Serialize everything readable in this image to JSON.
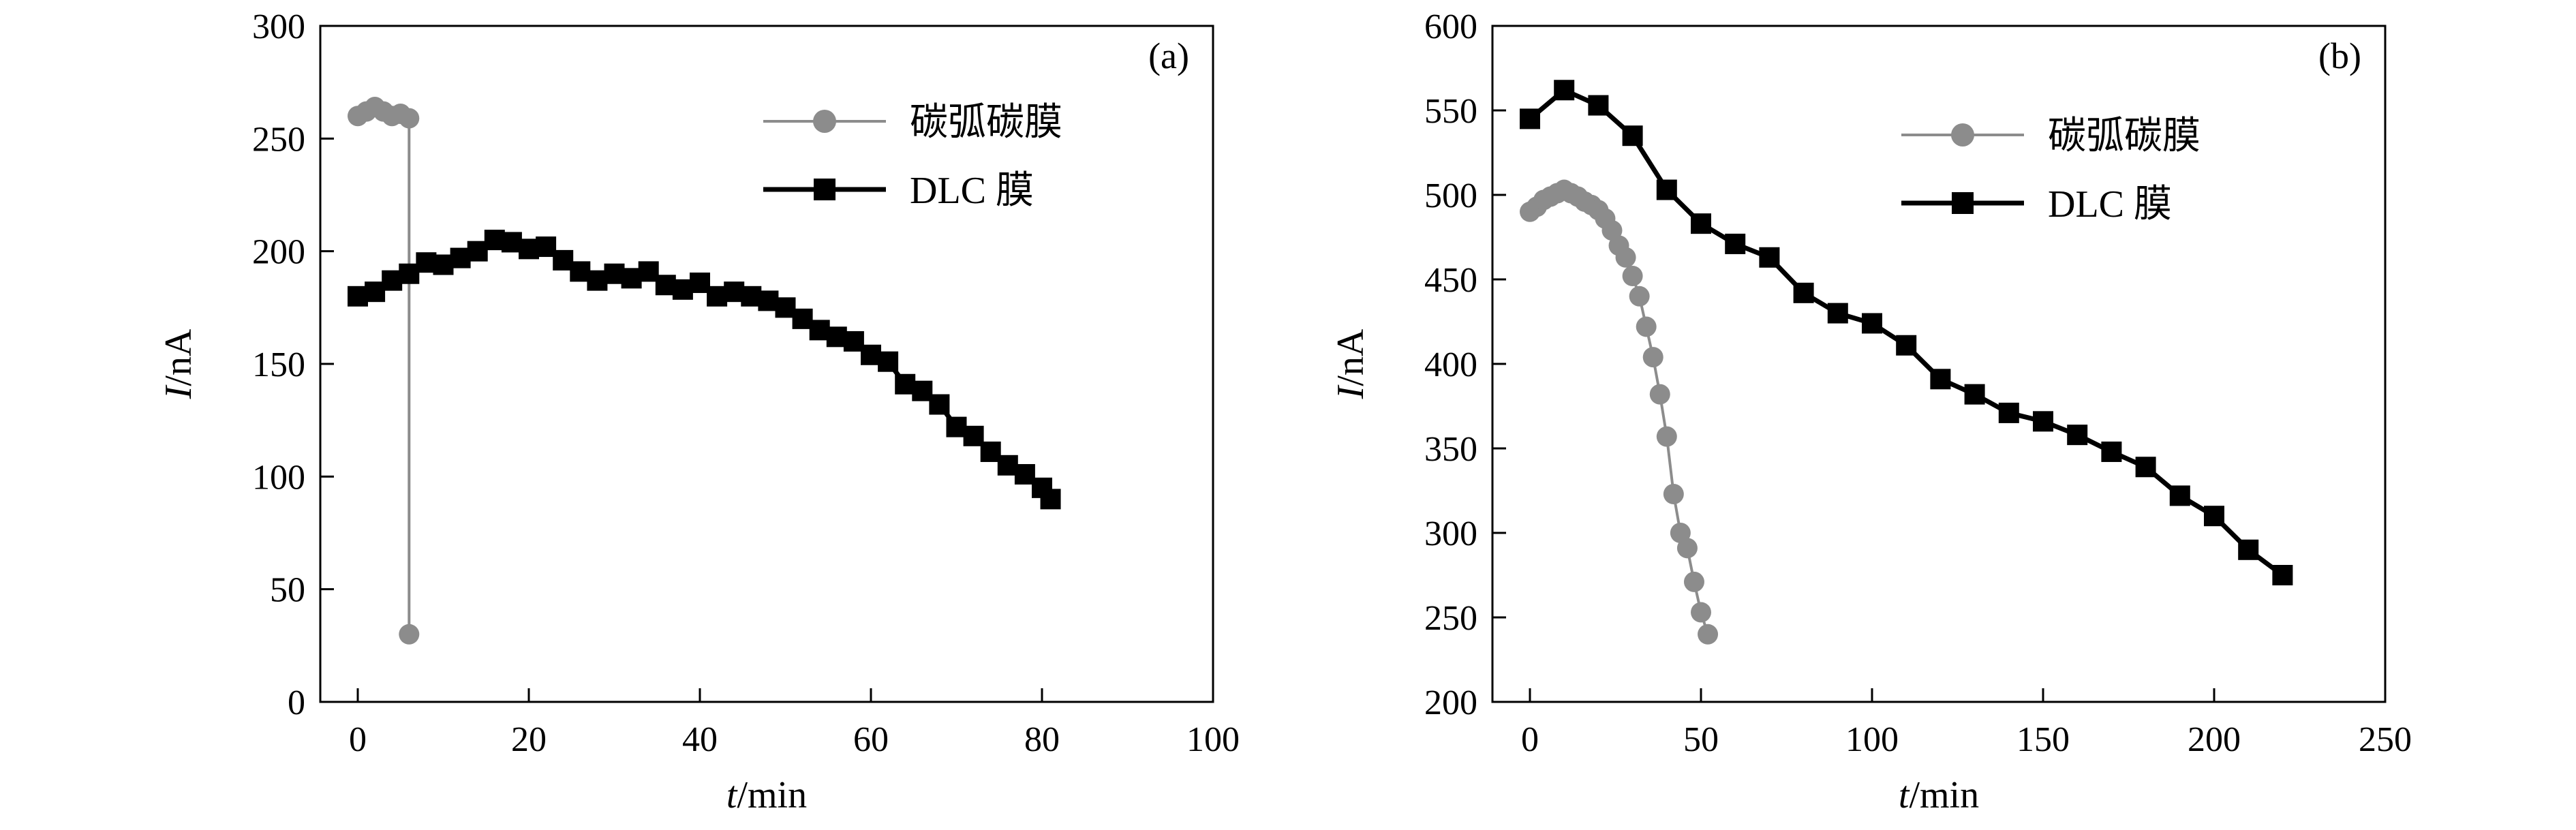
{
  "colors": {
    "series_gray": "#8c8c8c",
    "series_black": "#000000"
  },
  "chart_data": [
    {
      "type": "line",
      "panel_label": "(a)",
      "xlabel_var": "t",
      "xlabel_unit": "/min",
      "ylabel_var": "I",
      "ylabel_unit": "/nA",
      "xlim": [
        0,
        100
      ],
      "ylim": [
        0,
        300
      ],
      "xticks": [
        0,
        20,
        40,
        60,
        80,
        100
      ],
      "yticks": [
        0,
        50,
        100,
        150,
        200,
        250,
        300
      ],
      "legend": "top-right",
      "grid": false,
      "series": [
        {
          "name": "碳弧碳膜",
          "marker": "circle",
          "color": "#8c8c8c",
          "x": [
            0,
            1,
            2,
            3,
            4,
            5,
            6,
            6
          ],
          "y": [
            260,
            262,
            264,
            262,
            260,
            261,
            259,
            30
          ]
        },
        {
          "name": "DLC 膜",
          "marker": "square",
          "color": "#000000",
          "x": [
            0,
            2,
            4,
            6,
            8,
            10,
            12,
            14,
            16,
            18,
            20,
            22,
            24,
            26,
            28,
            30,
            32,
            34,
            36,
            38,
            40,
            42,
            44,
            46,
            48,
            50,
            52,
            54,
            56,
            58,
            60,
            62,
            64,
            66,
            68,
            70,
            72,
            74,
            76,
            78,
            80,
            81
          ],
          "y": [
            180,
            182,
            187,
            190,
            195,
            194,
            197,
            200,
            205,
            204,
            201,
            202,
            196,
            191,
            187,
            190,
            188,
            191,
            185,
            183,
            186,
            180,
            182,
            180,
            178,
            175,
            170,
            165,
            162,
            160,
            154,
            151,
            141,
            138,
            132,
            122,
            118,
            111,
            105,
            101,
            95,
            90
          ]
        }
      ]
    },
    {
      "type": "line",
      "panel_label": "(b)",
      "xlabel_var": "t",
      "xlabel_unit": "/min",
      "ylabel_var": "I",
      "ylabel_unit": "/nA",
      "xlim": [
        0,
        250
      ],
      "ylim": [
        200,
        600
      ],
      "xticks": [
        0,
        50,
        100,
        150,
        200,
        250
      ],
      "yticks": [
        200,
        250,
        300,
        350,
        400,
        450,
        500,
        550,
        600
      ],
      "legend": "top-right",
      "grid": false,
      "series": [
        {
          "name": "碳弧碳膜",
          "marker": "circle",
          "color": "#8c8c8c",
          "x": [
            0,
            2,
            4,
            6,
            8,
            10,
            12,
            14,
            16,
            18,
            20,
            22,
            24,
            26,
            28,
            30,
            32,
            34,
            36,
            38,
            40,
            42,
            44,
            46,
            48,
            50,
            52
          ],
          "y": [
            490,
            493,
            497,
            499,
            501,
            503,
            501,
            499,
            496,
            494,
            491,
            486,
            479,
            470,
            463,
            452,
            440,
            422,
            404,
            382,
            357,
            323,
            300,
            291,
            271,
            253,
            240
          ]
        },
        {
          "name": "DLC 膜",
          "marker": "square",
          "color": "#000000",
          "x": [
            0,
            10,
            20,
            30,
            40,
            50,
            60,
            70,
            80,
            90,
            100,
            110,
            120,
            130,
            140,
            150,
            160,
            170,
            180,
            190,
            200,
            210,
            220
          ],
          "y": [
            545,
            562,
            553,
            535,
            503,
            483,
            471,
            463,
            442,
            430,
            424,
            411,
            391,
            382,
            371,
            366,
            358,
            348,
            339,
            322,
            310,
            290,
            275
          ]
        }
      ]
    }
  ]
}
